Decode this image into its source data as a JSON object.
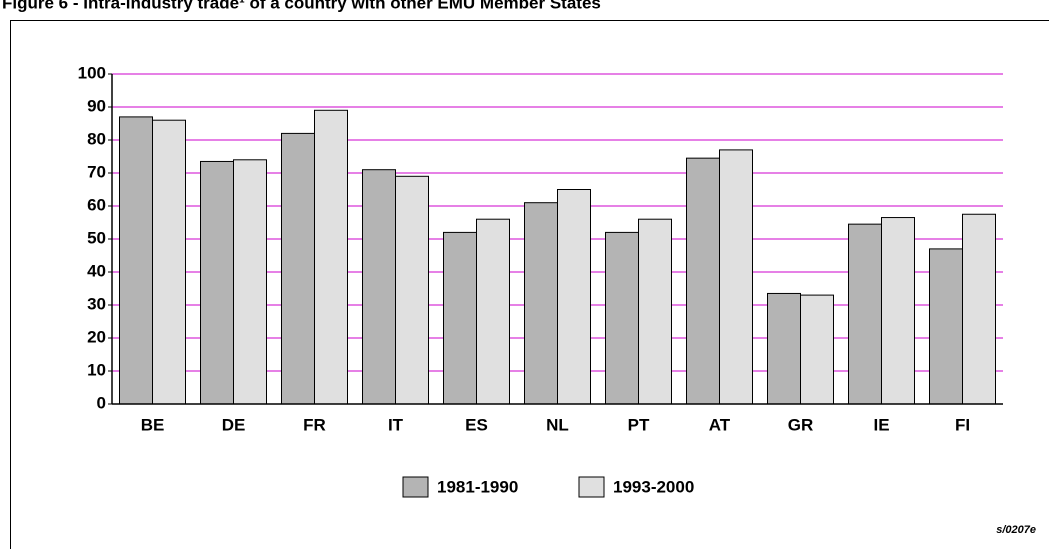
{
  "chart_data": {
    "type": "bar",
    "title": "Figure 6 - Intra-industry trade¹ of a country with other EMU Member States",
    "note": "s/0207e",
    "categories": [
      "BE",
      "DE",
      "FR",
      "IT",
      "ES",
      "NL",
      "PT",
      "AT",
      "GR",
      "IE",
      "FI"
    ],
    "series": [
      {
        "name": "1981-1990",
        "color": "#b4b4b4",
        "values": [
          87,
          73.5,
          82,
          71,
          52,
          61,
          52,
          74.5,
          33.5,
          54.5,
          47
        ]
      },
      {
        "name": "1993-2000",
        "color": "#e0e0e0",
        "values": [
          86,
          74,
          89,
          69,
          56,
          65,
          56,
          77,
          33,
          56.5,
          57.5
        ]
      }
    ],
    "ylim": [
      0,
      100
    ],
    "yticks": [
      0,
      10,
      20,
      30,
      40,
      50,
      60,
      70,
      80,
      90,
      100
    ],
    "grid": true,
    "grid_color": "#cc00cc",
    "legend": "bottom"
  }
}
